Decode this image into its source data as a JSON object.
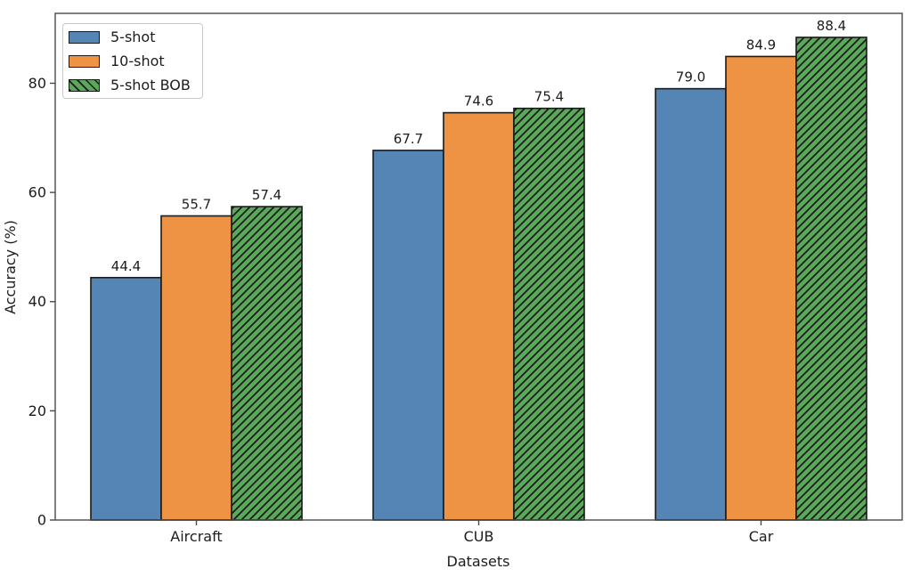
{
  "chart_data": {
    "type": "bar",
    "title": "",
    "xlabel": "Datasets",
    "ylabel": "Accuracy (%)",
    "categories": [
      "Aircraft",
      "CUB",
      "Car"
    ],
    "series": [
      {
        "name": "5-shot",
        "color": "#5585b5",
        "hatch": false,
        "values": [
          44.4,
          67.7,
          79.0
        ]
      },
      {
        "name": "10-shot",
        "color": "#ee9343",
        "hatch": false,
        "values": [
          55.7,
          74.6,
          84.9
        ]
      },
      {
        "name": "5-shot BOB",
        "color": "#5aa85a",
        "hatch": true,
        "values": [
          57.4,
          75.4,
          88.4
        ]
      }
    ],
    "yticks": [
      0,
      20,
      40,
      60,
      80
    ],
    "ylim": [
      0,
      92.8
    ],
    "grid": false,
    "legend_position": "upper-left",
    "bar_edge_color": "#1a1a1a",
    "value_label_decimals": 1
  }
}
